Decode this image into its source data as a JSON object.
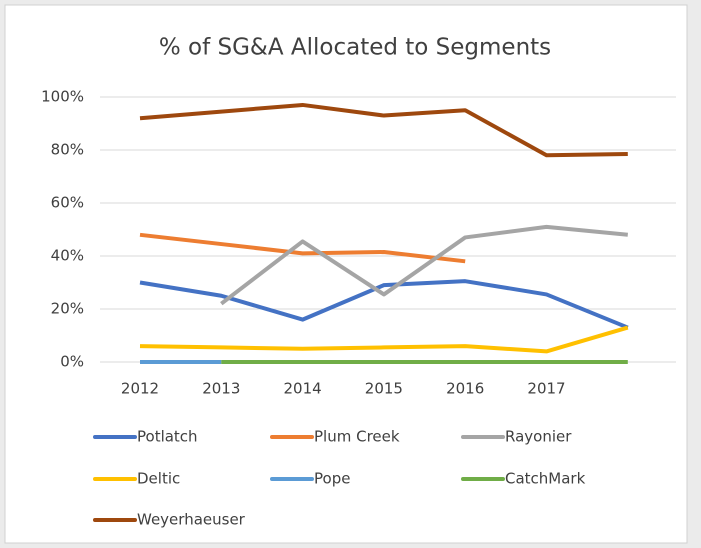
{
  "chart_data": {
    "type": "line",
    "title": "% of SG&A Allocated to Segments",
    "categories": [
      "2012",
      "2013",
      "2014",
      "2015",
      "2016",
      "2017",
      null
    ],
    "series": [
      {
        "name": "Potlatch",
        "color": "#4472c4",
        "values": [
          30,
          25,
          16,
          29,
          30.5,
          25.5,
          13
        ]
      },
      {
        "name": "Plum Creek",
        "color": "#ed7d31",
        "values": [
          48,
          44.5,
          41,
          41.5,
          38,
          null,
          null
        ]
      },
      {
        "name": "Rayonier",
        "color": "#a5a5a5",
        "values": [
          null,
          22,
          45.5,
          25.5,
          47,
          51,
          48
        ]
      },
      {
        "name": "Deltic",
        "color": "#ffc000",
        "values": [
          6,
          5.5,
          5,
          5.5,
          6,
          4,
          13
        ]
      },
      {
        "name": "Pope",
        "color": "#5b9bd5",
        "values": [
          0,
          0,
          null,
          null,
          null,
          null,
          null
        ]
      },
      {
        "name": "CatchMark",
        "color": "#70ad47",
        "values": [
          null,
          0,
          0,
          0,
          0,
          0,
          0
        ]
      },
      {
        "name": "Weyerhaeuser",
        "color": "#9e480e",
        "values": [
          92,
          94.5,
          97,
          93,
          95,
          78,
          78.5
        ]
      }
    ],
    "ylim": [
      0,
      100
    ],
    "yticks": [
      {
        "value": 0,
        "label": "0%"
      },
      {
        "value": 20,
        "label": "20%"
      },
      {
        "value": 40,
        "label": "40%"
      },
      {
        "value": 60,
        "label": "60%"
      },
      {
        "value": 80,
        "label": "80%"
      },
      {
        "value": 100,
        "label": "100%"
      }
    ],
    "grid": true,
    "legend": "bottom"
  }
}
